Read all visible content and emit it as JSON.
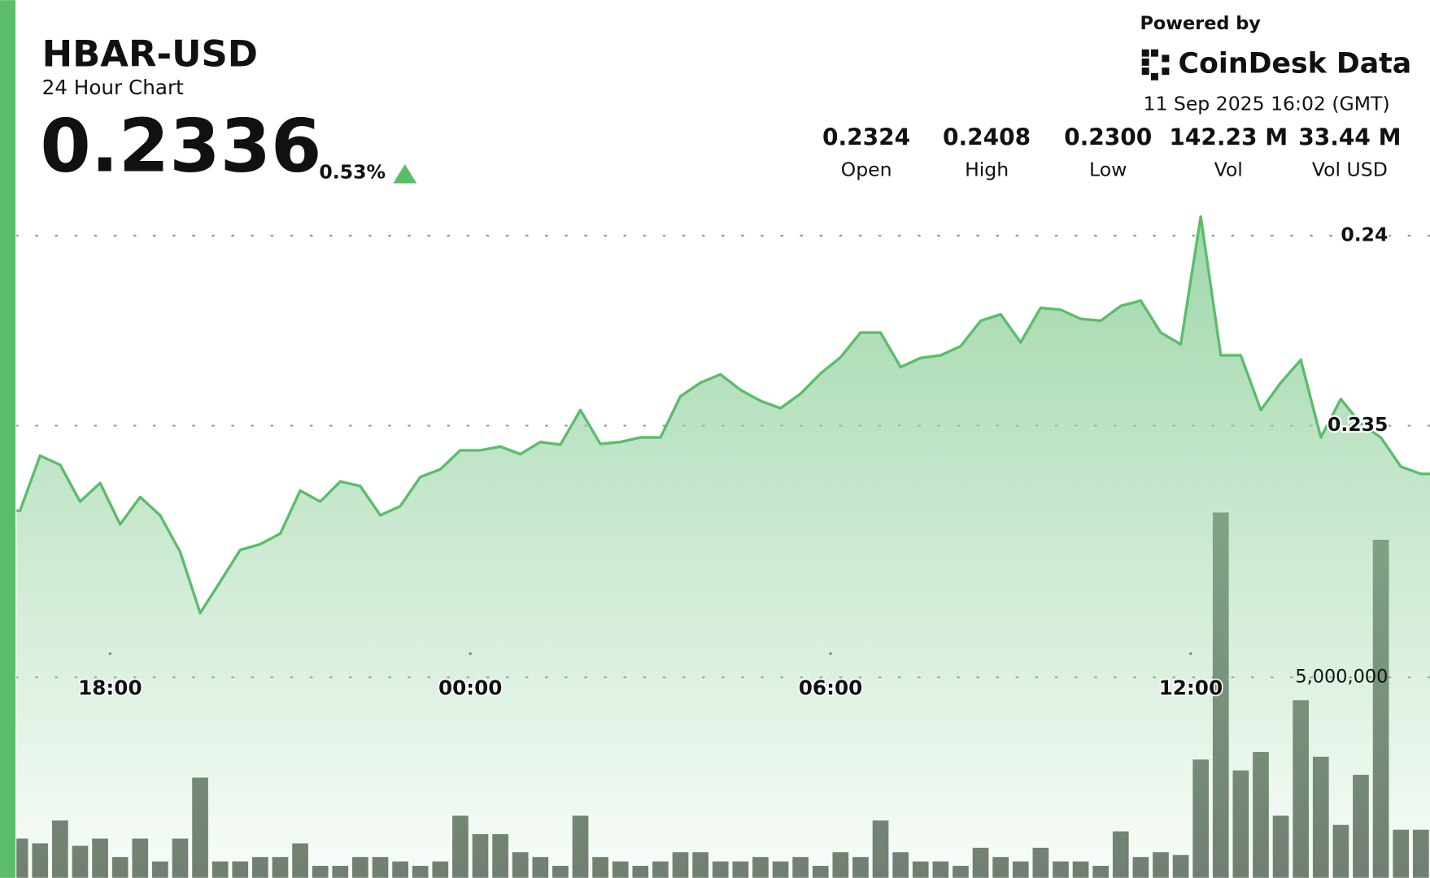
{
  "header": {
    "symbol": "HBAR-USD",
    "subtitle": "24 Hour Chart",
    "price": "0.2336",
    "change": "0.53%"
  },
  "brand": {
    "powered_by": "Powered by",
    "name": "CoinDesk Data",
    "timestamp": "11 Sep 2025 16:02 (GMT)"
  },
  "stats": [
    {
      "value": "0.2324",
      "label": "Open"
    },
    {
      "value": "0.2408",
      "label": "High"
    },
    {
      "value": "0.2300",
      "label": "Low"
    },
    {
      "value": "142.23 M",
      "label": "Vol"
    },
    {
      "value": "33.44 M",
      "label": "Vol USD"
    }
  ],
  "chart_data": {
    "type": "line",
    "x": [
      "16:30",
      "16:50",
      "17:10",
      "17:30",
      "17:50",
      "18:10",
      "18:30",
      "18:50",
      "19:10",
      "19:30",
      "19:50",
      "20:10",
      "20:30",
      "20:50",
      "21:10",
      "21:30",
      "21:50",
      "22:10",
      "22:30",
      "22:50",
      "23:10",
      "23:30",
      "23:50",
      "00:10",
      "00:30",
      "00:50",
      "01:10",
      "01:30",
      "01:50",
      "02:10",
      "02:30",
      "02:50",
      "03:10",
      "03:30",
      "03:50",
      "04:10",
      "04:30",
      "04:50",
      "05:10",
      "05:30",
      "05:50",
      "06:10",
      "06:30",
      "06:50",
      "07:10",
      "07:30",
      "07:50",
      "08:10",
      "08:30",
      "08:50",
      "09:10",
      "09:30",
      "09:50",
      "10:10",
      "10:30",
      "10:50",
      "11:10",
      "11:30",
      "11:50",
      "12:10",
      "12:30",
      "12:50",
      "13:10",
      "13:30",
      "13:50",
      "14:10",
      "14:30",
      "14:50",
      "15:10",
      "15:30",
      "15:50"
    ],
    "series": [
      {
        "color": "#5bbd6b",
        "values": [
          0.23276,
          0.23421,
          0.23397,
          0.233,
          0.23349,
          0.2324,
          0.23312,
          0.23264,
          0.23168,
          0.23007,
          0.23089,
          0.23173,
          0.23188,
          0.23216,
          0.23329,
          0.233,
          0.23353,
          0.23341,
          0.23264,
          0.23288,
          0.23365,
          0.23385,
          0.23435,
          0.23435,
          0.23445,
          0.23425,
          0.23457,
          0.2345,
          0.23541,
          0.23452,
          0.23457,
          0.23469,
          0.23469,
          0.23577,
          0.23613,
          0.23635,
          0.23594,
          0.23565,
          0.23546,
          0.23584,
          0.23637,
          0.2368,
          0.23745,
          0.23745,
          0.23654,
          0.23678,
          0.23685,
          0.23709,
          0.23776,
          0.23793,
          0.23719,
          0.2381,
          0.23805,
          0.23781,
          0.23776,
          0.23815,
          0.23829,
          0.23745,
          0.23714,
          0.2405,
          0.23685,
          0.23685,
          0.23541,
          0.23613,
          0.23673,
          0.23469,
          0.2357,
          0.23505,
          0.23469,
          0.23392,
          0.23373
        ]
      },
      {
        "type": "bar",
        "axis": "y2",
        "color": "#5f6b5f",
        "values": [
          980000,
          860000,
          1430000,
          800000,
          980000,
          520000,
          980000,
          410000,
          980000,
          2500000,
          410000,
          410000,
          520000,
          520000,
          860000,
          300000,
          300000,
          520000,
          520000,
          410000,
          300000,
          410000,
          1550000,
          1090000,
          1090000,
          640000,
          520000,
          300000,
          1550000,
          520000,
          410000,
          300000,
          410000,
          640000,
          640000,
          410000,
          410000,
          520000,
          410000,
          520000,
          300000,
          640000,
          520000,
          1430000,
          640000,
          410000,
          410000,
          300000,
          750000,
          520000,
          410000,
          750000,
          410000,
          410000,
          300000,
          1160000,
          520000,
          640000,
          570000,
          2950000,
          9110000,
          2680000,
          3140000,
          1550000,
          4430000,
          3020000,
          1320000,
          2570000,
          8430000,
          1200000,
          1200000
        ]
      }
    ],
    "ylim": [
      0.2231,
      0.2414
    ],
    "yticks": [
      0.235,
      0.24
    ],
    "y2lim": [
      0,
      9500000
    ],
    "y2ticks": [
      {
        "value": 5000000,
        "label": "5,000,000"
      }
    ],
    "xticks": [
      "18:00",
      "00:00",
      "06:00",
      "12:00"
    ],
    "grid": true
  }
}
